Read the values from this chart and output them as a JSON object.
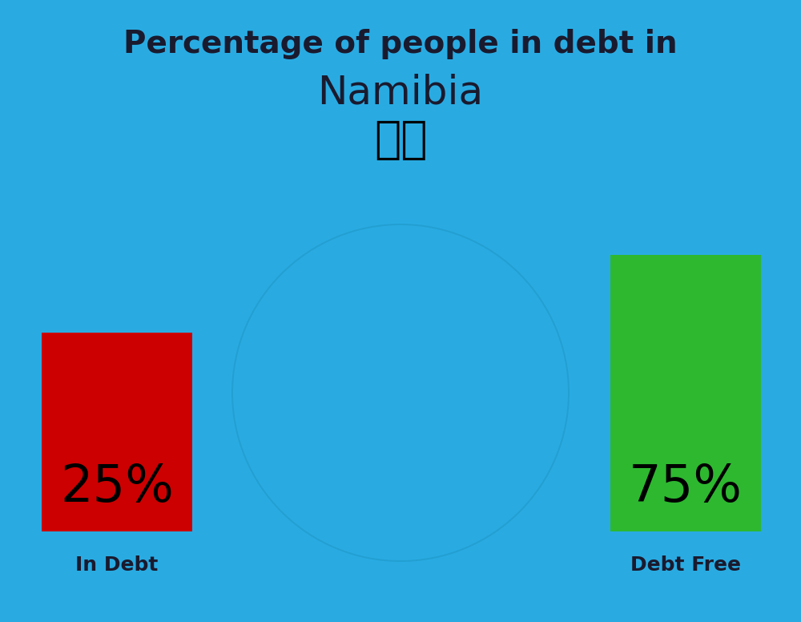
{
  "title_line1": "Percentage of people in debt in",
  "title_line2": "Namibia",
  "background_color": "#29ABE2",
  "bar1_label": "In Debt",
  "bar1_value": "25%",
  "bar1_color": "#CC0000",
  "bar2_label": "Debt Free",
  "bar2_value": "75%",
  "bar2_color": "#2DB830",
  "title_fontsize": 28,
  "country_fontsize": 36,
  "pct_fontsize": 46,
  "label_fontsize": 18,
  "text_color": "#1a1a2e",
  "flag_emoji": "🇳🇦"
}
